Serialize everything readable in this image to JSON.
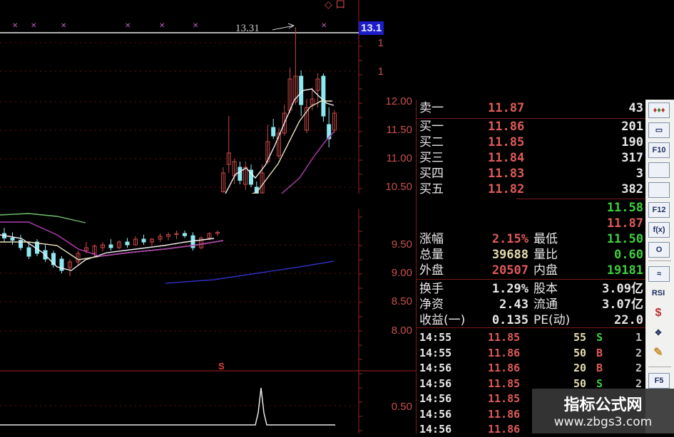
{
  "chart": {
    "peak_annotation": "13.31",
    "top_price_tag": "13.1",
    "top_markers": [
      "◇",
      "口"
    ],
    "signal_label": "S",
    "axis_upper": [
      "1",
      "1",
      "12.00",
      "11.50",
      "11.00",
      "10.50"
    ],
    "axis_lower": [
      "9.50",
      "9.00",
      "8.50",
      "8.00"
    ],
    "axis_indicator": [
      "0.50"
    ],
    "colors": {
      "up": "#c84848",
      "down": "#8ee8f0",
      "ma5": "#f0f0f0",
      "ma10": "#e8e0c0",
      "ma20": "#b040b0",
      "ma60": "#3030c0",
      "ma_green": "#70c070",
      "grid": "#6a1010"
    },
    "upper_candles_ohlc": [
      [
        10.42,
        10.85,
        10.4,
        10.75
      ],
      [
        10.9,
        11.75,
        10.75,
        11.1
      ],
      [
        10.7,
        11.0,
        10.55,
        10.95
      ],
      [
        10.85,
        10.95,
        10.55,
        10.62
      ],
      [
        10.55,
        10.95,
        10.45,
        10.85
      ],
      [
        10.8,
        10.9,
        10.5,
        10.55
      ],
      [
        10.5,
        10.6,
        10.3,
        10.35
      ],
      [
        10.4,
        10.9,
        10.35,
        10.75
      ],
      [
        10.95,
        11.6,
        10.9,
        11.3
      ],
      [
        11.55,
        11.7,
        11.35,
        11.4
      ],
      [
        11.05,
        11.55,
        11.0,
        11.45
      ],
      [
        11.45,
        11.95,
        11.4,
        11.8
      ],
      [
        11.85,
        12.6,
        11.8,
        12.4
      ],
      [
        12.0,
        13.31,
        11.95,
        12.45
      ],
      [
        12.45,
        12.55,
        11.75,
        11.95
      ],
      [
        11.5,
        12.05,
        11.45,
        11.9
      ],
      [
        11.95,
        12.25,
        11.85,
        12.05
      ],
      [
        12.2,
        12.5,
        11.9,
        12.4
      ],
      [
        12.45,
        12.5,
        11.65,
        11.75
      ],
      [
        11.6,
        11.9,
        11.2,
        11.35
      ],
      [
        11.5,
        11.85,
        11.45,
        11.8
      ]
    ],
    "lower_candles_ohlc": [
      [
        9.7,
        9.8,
        9.55,
        9.62
      ],
      [
        9.62,
        9.72,
        9.5,
        9.58
      ],
      [
        9.58,
        9.68,
        9.4,
        9.45
      ],
      [
        9.45,
        9.55,
        9.25,
        9.3
      ],
      [
        9.55,
        9.6,
        9.3,
        9.35
      ],
      [
        9.4,
        9.5,
        9.2,
        9.25
      ],
      [
        9.35,
        9.4,
        9.1,
        9.15
      ],
      [
        9.25,
        9.3,
        9.0,
        9.05
      ],
      [
        9.1,
        9.25,
        8.95,
        9.2
      ],
      [
        9.2,
        9.4,
        9.15,
        9.35
      ],
      [
        9.4,
        9.55,
        9.35,
        9.45
      ],
      [
        9.35,
        9.5,
        9.3,
        9.48
      ],
      [
        9.45,
        9.55,
        9.38,
        9.5
      ],
      [
        9.5,
        9.6,
        9.4,
        9.45
      ],
      [
        9.45,
        9.58,
        9.42,
        9.55
      ],
      [
        9.55,
        9.62,
        9.45,
        9.5
      ],
      [
        9.5,
        9.65,
        9.48,
        9.6
      ],
      [
        9.6,
        9.68,
        9.5,
        9.55
      ],
      [
        9.55,
        9.62,
        9.48,
        9.6
      ],
      [
        9.6,
        9.7,
        9.55,
        9.65
      ],
      [
        9.65,
        9.72,
        9.58,
        9.68
      ],
      [
        9.68,
        9.75,
        9.6,
        9.7
      ],
      [
        9.7,
        9.75,
        9.62,
        9.66
      ],
      [
        9.66,
        9.72,
        9.4,
        9.45
      ],
      [
        9.45,
        9.65,
        9.42,
        9.62
      ],
      [
        9.62,
        9.72,
        9.58,
        9.7
      ],
      [
        9.7,
        9.75,
        9.65,
        9.72
      ]
    ]
  },
  "quote": {
    "order_book": [
      {
        "label": "卖一",
        "price": "11.87",
        "vol": "43"
      },
      {
        "label": "买一",
        "price": "11.86",
        "vol": "201"
      },
      {
        "label": "买二",
        "price": "11.85",
        "vol": "190"
      },
      {
        "label": "买三",
        "price": "11.84",
        "vol": "317"
      },
      {
        "label": "买四",
        "price": "11.83",
        "vol": "3"
      },
      {
        "label": "买五",
        "price": "11.82",
        "vol": "382"
      }
    ],
    "extra_values": [
      "11.58",
      "11.87"
    ],
    "stats": [
      {
        "l1": "涨幅",
        "v1": "2.15%",
        "l2": "最低",
        "v2": "11.50"
      },
      {
        "l1": "总量",
        "v1": "39688",
        "l2": "量比",
        "v2": "0.60"
      },
      {
        "l1": "外盘",
        "v1": "20507",
        "l2": "内盘",
        "v2": "19181"
      },
      {
        "l1": "换手",
        "v1": "1.29%",
        "l2": "股本",
        "v2": "3.09亿"
      },
      {
        "l1": "净资",
        "v1": "2.43",
        "l2": "流通",
        "v2": "3.07亿"
      },
      {
        "l1": "收益(一)",
        "v1": "0.135",
        "l2": "PE(动)",
        "v2": "22.0"
      }
    ],
    "ticks": [
      {
        "time": "14:55",
        "price": "11.85",
        "vol": "55",
        "side": "S",
        "n": "1"
      },
      {
        "time": "14:55",
        "price": "11.86",
        "vol": "50",
        "side": "B",
        "n": "2"
      },
      {
        "time": "14:56",
        "price": "11.86",
        "vol": "20",
        "side": "B",
        "n": "2"
      },
      {
        "time": "14:56",
        "price": "11.85",
        "vol": "50",
        "side": "S",
        "n": "2"
      },
      {
        "time": "14:56",
        "price": "11.85",
        "vol": "",
        "side": "",
        "n": ""
      },
      {
        "time": "14:56",
        "price": "11.86",
        "vol": "",
        "side": "",
        "n": ""
      },
      {
        "time": "14:56",
        "price": "11.86",
        "vol": "",
        "side": "",
        "n": ""
      }
    ]
  },
  "toolbar": {
    "buttons": [
      {
        "icon": "candlestick-icon",
        "label": ""
      },
      {
        "icon": "window-icon",
        "label": ""
      },
      {
        "icon": "f10-icon",
        "label": "F10"
      },
      {
        "icon": "f11-icon",
        "label": ""
      },
      {
        "icon": "news-icon",
        "label": ""
      },
      {
        "icon": "f12-icon",
        "label": "F12"
      },
      {
        "icon": "formula-icon",
        "label": "f(x)"
      },
      {
        "icon": "circle-icon",
        "label": "O"
      },
      {
        "icon": "wave-icon",
        "label": "≈"
      },
      {
        "icon": "rsi-icon",
        "label": "RSI"
      },
      {
        "icon": "dollar-icon",
        "label": "$"
      },
      {
        "icon": "move-icon",
        "label": "✥"
      },
      {
        "icon": "pencil-icon",
        "label": "✎"
      },
      {
        "icon": "f5-icon",
        "label": "F5"
      }
    ]
  },
  "watermark": {
    "title": "指标公式网",
    "url": "www.zbgs3.com"
  }
}
